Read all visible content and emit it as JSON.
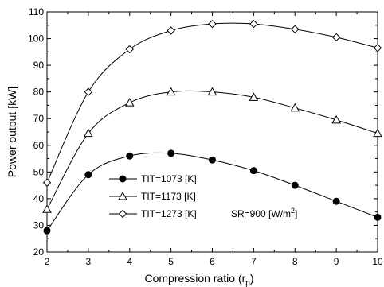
{
  "chart_data": {
    "type": "line",
    "xlabel": "Compression ratio (r",
    "xlabel_sub": "p",
    "xlabel_close": ")",
    "ylabel": "Power output [kW]",
    "xlim": [
      2,
      10
    ],
    "ylim": [
      20,
      110
    ],
    "x_ticks": [
      2,
      3,
      4,
      5,
      6,
      7,
      8,
      9,
      10
    ],
    "y_ticks": [
      20,
      30,
      40,
      50,
      60,
      70,
      80,
      90,
      100,
      110
    ],
    "grid": false,
    "legend_position": "lower-left",
    "annotation": {
      "text": "SR=900 [W/m",
      "sup": "2",
      "close": "]"
    },
    "series": [
      {
        "name": "TIT=1073 [K]",
        "marker": "filled-circle",
        "x": [
          2,
          3,
          4,
          5,
          6,
          7,
          8,
          9,
          10
        ],
        "values": [
          28,
          49,
          56,
          57,
          54.5,
          50.5,
          45,
          39,
          33
        ]
      },
      {
        "name": "TIT=1173 [K]",
        "marker": "open-triangle",
        "x": [
          2,
          3,
          4,
          5,
          6,
          7,
          8,
          9,
          10
        ],
        "values": [
          36,
          64.5,
          76,
          80,
          80,
          78,
          74,
          69.5,
          64.5
        ]
      },
      {
        "name": "TIT=1273 [K]",
        "marker": "open-diamond",
        "x": [
          2,
          3,
          4,
          5,
          6,
          7,
          8,
          9,
          10
        ],
        "values": [
          46,
          80,
          96,
          103,
          105.5,
          105.5,
          103.5,
          100.5,
          96.5
        ]
      }
    ]
  }
}
